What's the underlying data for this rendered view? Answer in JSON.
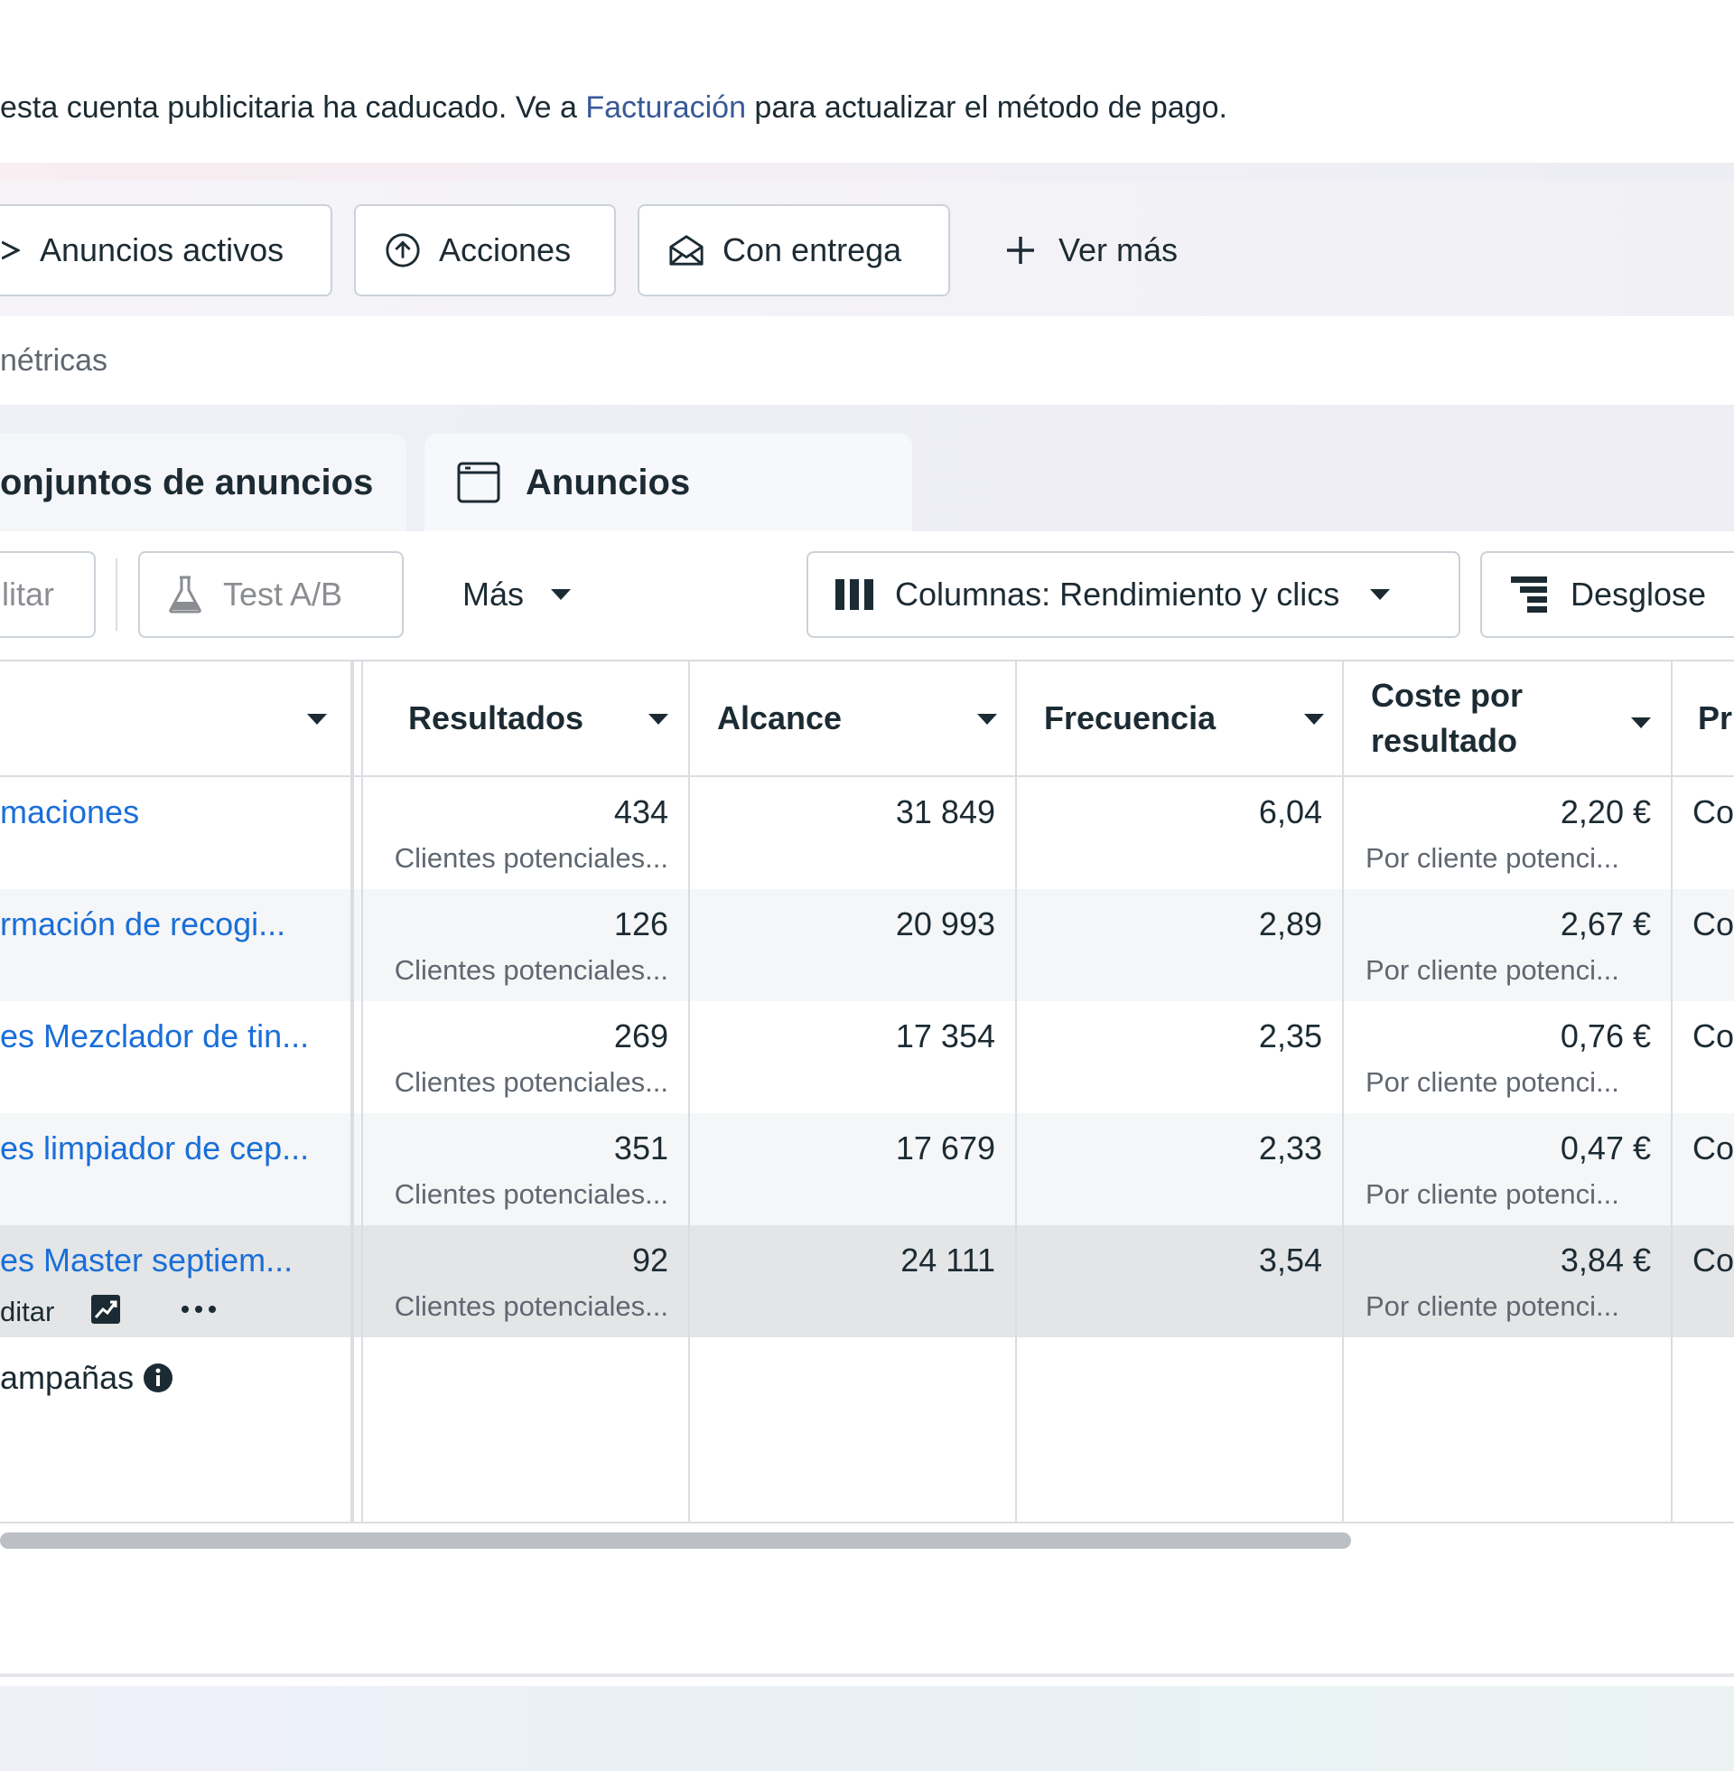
{
  "banner": {
    "text_before": "esta cuenta publicitaria ha caducado. Ve a ",
    "link": "Facturación",
    "text_after": " para actualizar el método de pago."
  },
  "filters": {
    "active_ads": "Anuncios activos",
    "actions": "Acciones",
    "delivered": "Con entrega",
    "see_more": "Ver más"
  },
  "metrics_label": "nétricas",
  "tabs": {
    "ad_sets": "onjuntos de anuncios",
    "ads": "Anuncios"
  },
  "toolbar": {
    "edit": "litar",
    "ab_test": "Test A/B",
    "more": "Más",
    "columns": "Columnas: Rendimiento y clics",
    "breakdown": "Desglose"
  },
  "table": {
    "headers": {
      "results": "Resultados",
      "reach": "Alcance",
      "frequency": "Frecuencia",
      "cost_line1": "Coste por",
      "cost_line2": "resultado",
      "partial": "Pr"
    },
    "rows": [
      {
        "name": "maciones",
        "results": "434",
        "results_sub": "Clientes potenciales...",
        "reach": "31 849",
        "frequency": "6,04",
        "cost": "2,20 €",
        "cost_sub": "Por cliente potenci...",
        "partial": "Co"
      },
      {
        "name": "rmación de recogi...",
        "results": "126",
        "results_sub": "Clientes potenciales...",
        "reach": "20 993",
        "frequency": "2,89",
        "cost": "2,67 €",
        "cost_sub": "Por cliente potenci...",
        "partial": "Co"
      },
      {
        "name": "es Mezclador de tin...",
        "results": "269",
        "results_sub": "Clientes potenciales...",
        "reach": "17 354",
        "frequency": "2,35",
        "cost": "0,76 €",
        "cost_sub": "Por cliente potenci...",
        "partial": "Co"
      },
      {
        "name": "es limpiador de cep...",
        "results": "351",
        "results_sub": "Clientes potenciales...",
        "reach": "17 679",
        "frequency": "2,33",
        "cost": "0,47 €",
        "cost_sub": "Por cliente potenci...",
        "partial": "Co"
      },
      {
        "name": "es Master septiem...",
        "results": "92",
        "results_sub": "Clientes potenciales...",
        "reach": "24 111",
        "frequency": "3,54",
        "cost": "3,84 €",
        "cost_sub": "Por cliente potenci...",
        "partial": "Co",
        "row_edit": "ditar"
      }
    ],
    "summary_label": "ampañas"
  },
  "icons": {
    "filter_active": "send-icon",
    "filter_actions": "upload-circle-icon",
    "filter_delivered": "envelope-icon",
    "filter_more": "plus-icon",
    "tab_ads": "ad-frame-icon",
    "ab_test": "flask-icon",
    "columns": "columns-icon",
    "breakdown": "breakdown-icon",
    "chart": "chart-icon",
    "more": "ellipsis-icon",
    "info": "info-icon"
  },
  "colors": {
    "link": "#1a6ed8",
    "banner_link": "#385898",
    "text": "#1c2b33",
    "muted": "#606770"
  }
}
